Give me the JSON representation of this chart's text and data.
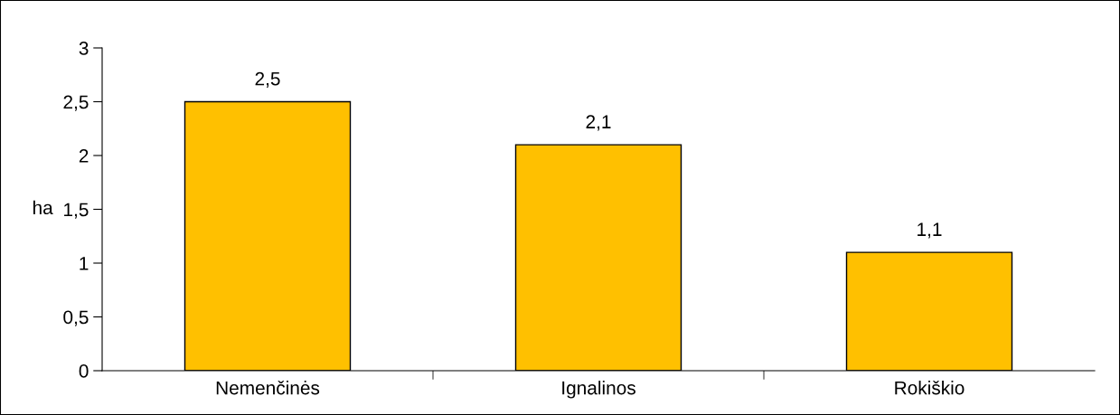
{
  "chart_data": {
    "type": "bar",
    "ylabel": "ha",
    "categories": [
      "Nemenčinės",
      "Ignalinos",
      "Rokiškio"
    ],
    "series": [
      {
        "color": "#ffc000",
        "values": [
          2.5,
          2.1,
          1.1
        ],
        "value_labels": [
          "2,5",
          "2,1",
          "1,1"
        ]
      }
    ],
    "ylim": [
      0,
      3
    ],
    "yticks": [
      0,
      {
        "value": 0.5,
        "label": "0,5"
      },
      1,
      {
        "value": 1.5,
        "label": "1,5"
      },
      2,
      {
        "value": 2.5,
        "label": "2,5"
      },
      3
    ],
    "grid": false,
    "legend": false
  }
}
